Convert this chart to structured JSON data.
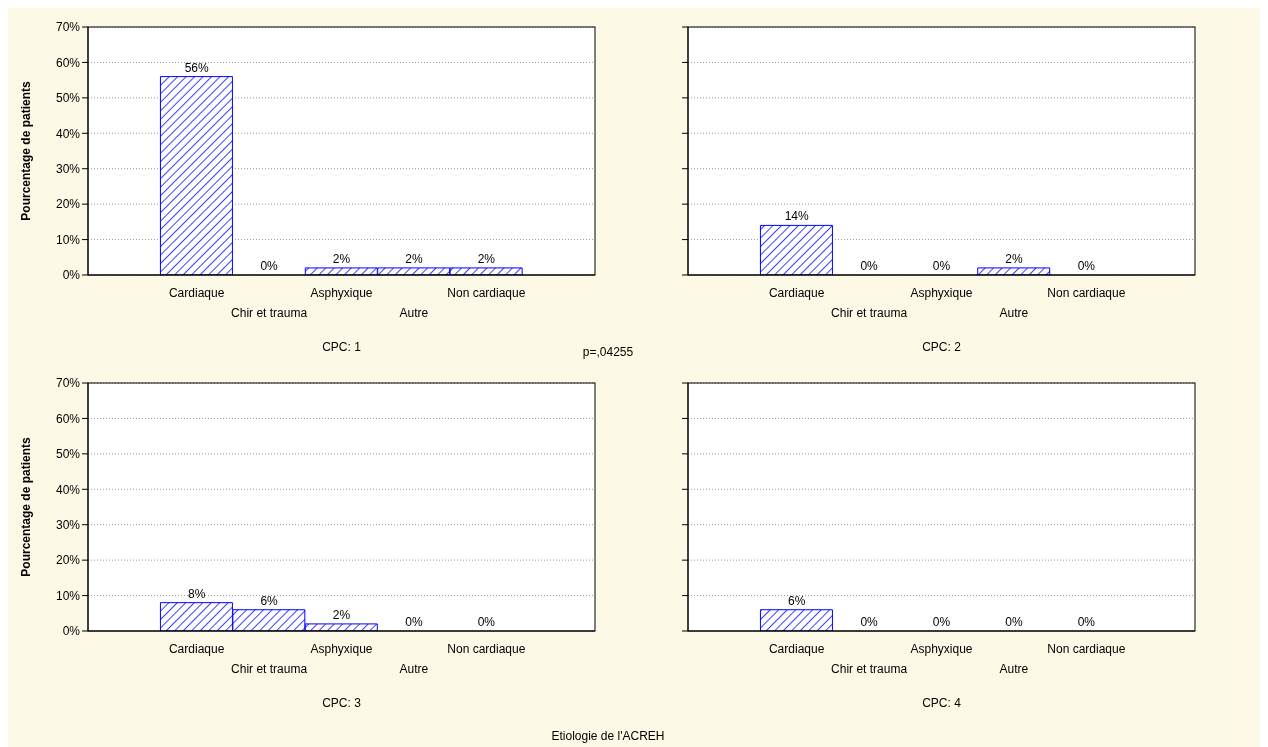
{
  "chart_data": [
    {
      "type": "bar",
      "xlabel": "CPC: 1",
      "ylabel": "Pourcentage de patients",
      "categories": [
        "Cardiaque",
        "Chir et trauma",
        "Asphyxique",
        "Autre",
        "Non cardiaque"
      ],
      "values": [
        56,
        0,
        2,
        2,
        2
      ],
      "value_labels": [
        "56%",
        "0%",
        "2%",
        "2%",
        "2%"
      ],
      "color": "#0000ff",
      "ylim": [
        0,
        70
      ],
      "yticks": [
        {
          "value": 0,
          "label": "0%"
        },
        {
          "value": 10,
          "label": "10%"
        },
        {
          "value": 20,
          "label": "20%"
        },
        {
          "value": 30,
          "label": "30%"
        },
        {
          "value": 40,
          "label": "40%"
        },
        {
          "value": 50,
          "label": "50%"
        },
        {
          "value": 60,
          "label": "60%"
        },
        {
          "value": 70,
          "label": "70%"
        }
      ],
      "grid": "y",
      "annotations": [
        "p=,04255"
      ]
    },
    {
      "type": "bar",
      "xlabel": "CPC: 2",
      "categories": [
        "Cardiaque",
        "Chir et trauma",
        "Asphyxique",
        "Autre",
        "Non cardiaque"
      ],
      "values": [
        14,
        0,
        0,
        2,
        0
      ],
      "value_labels": [
        "14%",
        "0%",
        "0%",
        "2%",
        "0%"
      ],
      "color": "#0000ff",
      "ylim": [
        0,
        70
      ],
      "yticks": [
        {
          "value": 0,
          "label": null
        },
        {
          "value": 10,
          "label": null
        },
        {
          "value": 20,
          "label": null
        },
        {
          "value": 30,
          "label": null
        },
        {
          "value": 40,
          "label": null
        },
        {
          "value": 50,
          "label": null
        },
        {
          "value": 60,
          "label": null
        },
        {
          "value": 70,
          "label": null
        }
      ],
      "grid": "y",
      "tick_labels": "x"
    },
    {
      "type": "bar",
      "xlabel": "CPC: 3",
      "ylabel": "Pourcentage de patients",
      "categories": [
        "Cardiaque",
        "Chir et trauma",
        "Asphyxique",
        "Autre",
        "Non cardiaque"
      ],
      "values": [
        8,
        6,
        2,
        0,
        0
      ],
      "value_labels": [
        "8%",
        "6%",
        "2%",
        "0%",
        "0%"
      ],
      "color": "#0000ff",
      "ylim": [
        0,
        70
      ],
      "yticks": [
        {
          "value": 0,
          "label": "0%"
        },
        {
          "value": 10,
          "label": "10%"
        },
        {
          "value": 20,
          "label": "20%"
        },
        {
          "value": 30,
          "label": "30%"
        },
        {
          "value": 40,
          "label": "40%"
        },
        {
          "value": 50,
          "label": "50%"
        },
        {
          "value": 60,
          "label": "60%"
        },
        {
          "value": 70,
          "label": "70%"
        }
      ],
      "grid": "y",
      "annotations": [
        "Etiologie de l'ACREH"
      ]
    },
    {
      "type": "bar",
      "xlabel": "CPC: 4",
      "categories": [
        "Cardiaque",
        "Chir et trauma",
        "Asphyxique",
        "Autre",
        "Non cardiaque"
      ],
      "values": [
        6,
        0,
        0,
        0,
        0
      ],
      "value_labels": [
        "6%",
        "0%",
        "0%",
        "0%",
        "0%"
      ],
      "color": "#0000ff",
      "ylim": [
        0,
        70
      ],
      "yticks": [
        {
          "value": 0,
          "label": null
        },
        {
          "value": 10,
          "label": null
        },
        {
          "value": 20,
          "label": null
        },
        {
          "value": 30,
          "label": null
        },
        {
          "value": 40,
          "label": null
        },
        {
          "value": 50,
          "label": null
        },
        {
          "value": 60,
          "label": null
        },
        {
          "value": 70,
          "label": null
        }
      ],
      "grid": "y",
      "tick_labels": "x"
    }
  ]
}
